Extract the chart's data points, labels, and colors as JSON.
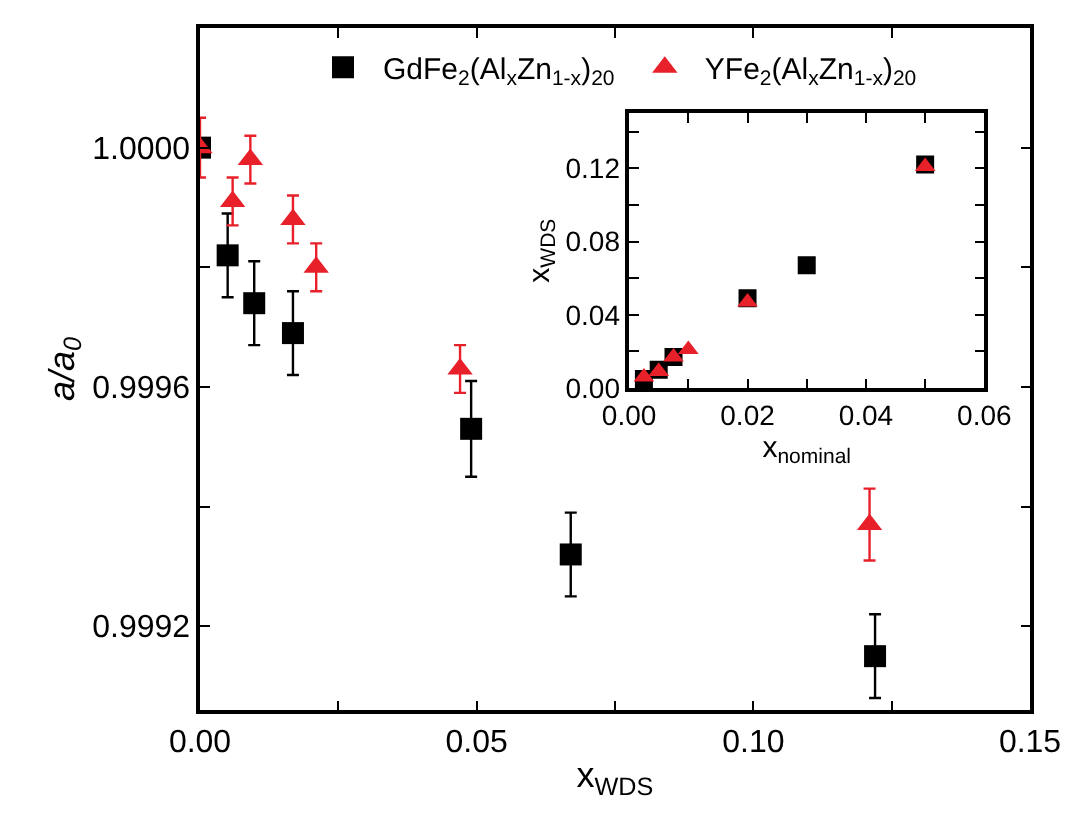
{
  "chart_data": [
    {
      "type": "scatter",
      "xlabel": "x$_{WDS}$",
      "ylabel": "a/a$_{0}$",
      "legend": "top",
      "xlim": [
        0,
        0.15
      ],
      "ylim": [
        0.99906,
        1.0002
      ],
      "xticks": [
        {
          "value": 0,
          "label": "0.00"
        },
        {
          "value": 0.025,
          "label": null
        },
        {
          "value": 0.05,
          "label": "0.05"
        },
        {
          "value": 0.075,
          "label": null
        },
        {
          "value": 0.1,
          "label": "0.10"
        },
        {
          "value": 0.125,
          "label": null
        },
        {
          "value": 0.15,
          "label": "0.15"
        }
      ],
      "yticks": [
        {
          "value": 0.9992,
          "label": "0.9992"
        },
        {
          "value": 0.9994,
          "label": null
        },
        {
          "value": 0.9996,
          "label": "0.9996"
        },
        {
          "value": 0.9998,
          "label": null
        },
        {
          "value": 1.0,
          "label": "1.0000"
        }
      ],
      "series": [
        {
          "name": "GdFe$_{2}$(Al$_{x}$Zn$_{1-x}$)$_{20}$",
          "color": "#000000",
          "marker": "square",
          "x": [
            0,
            0.005,
            0.0098,
            0.0168,
            0.049,
            0.067,
            0.122
          ],
          "values": [
            1.0,
            0.99982,
            0.99974,
            0.99969,
            0.99953,
            0.99932,
            0.99915
          ],
          "errors": [
            null,
            7e-05,
            7e-05,
            7e-05,
            8e-05,
            7e-05,
            7e-05
          ]
        },
        {
          "name": "YFe$_{2}$(Al$_{x}$Zn$_{1-x}$)$_{20}$",
          "color": "#e8202a",
          "marker": "triangle",
          "x": [
            0,
            0.0059,
            0.0091,
            0.0168,
            0.021,
            0.047,
            0.121
          ],
          "values": [
            1.0,
            0.99991,
            0.99998,
            0.99988,
            0.9998,
            0.99963,
            0.99937
          ],
          "errors": [
            5e-05,
            4e-05,
            4e-05,
            4e-05,
            4e-05,
            4e-05,
            6e-05
          ]
        }
      ]
    },
    {
      "type": "scatter",
      "xlabel": "x$_{nominal}$",
      "ylabel": "x$_{WDS}$",
      "xlim": [
        0,
        0.06
      ],
      "ylim": [
        0,
        0.15
      ],
      "xticks": [
        {
          "value": 0,
          "label": "0.00"
        },
        {
          "value": 0.01,
          "label": null
        },
        {
          "value": 0.02,
          "label": "0.02"
        },
        {
          "value": 0.03,
          "label": null
        },
        {
          "value": 0.04,
          "label": "0.04"
        },
        {
          "value": 0.05,
          "label": null
        },
        {
          "value": 0.06,
          "label": "0.06"
        }
      ],
      "yticks": [
        {
          "value": 0,
          "label": "0.00"
        },
        {
          "value": 0.02,
          "label": null
        },
        {
          "value": 0.04,
          "label": "0.04"
        },
        {
          "value": 0.06,
          "label": null
        },
        {
          "value": 0.08,
          "label": "0.08"
        },
        {
          "value": 0.1,
          "label": null
        },
        {
          "value": 0.12,
          "label": "0.12"
        },
        {
          "value": 0.14,
          "label": null
        }
      ],
      "series": [
        {
          "color": "#000000",
          "marker": "square",
          "x": [
            0.0025,
            0.005,
            0.0075,
            0.02,
            0.03,
            0.05
          ],
          "values": [
            0.005,
            0.01,
            0.017,
            0.049,
            0.067,
            0.122
          ]
        },
        {
          "color": "#e8202a",
          "marker": "triangle",
          "x": [
            0.0025,
            0.005,
            0.0075,
            0.01,
            0.02,
            0.05
          ],
          "values": [
            0.006,
            0.009,
            0.017,
            0.021,
            0.047,
            0.121
          ]
        }
      ]
    }
  ]
}
